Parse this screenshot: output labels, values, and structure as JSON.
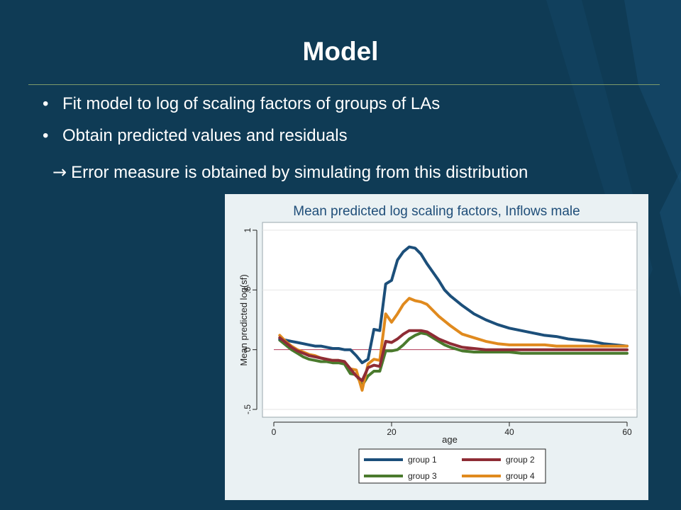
{
  "slide": {
    "title": "Model",
    "bullets": [
      "Fit model to log of scaling factors of groups of LAs",
      "Obtain predicted values and residuals"
    ],
    "bullet_symbol": "•",
    "arrow_symbol": "→",
    "arrow_text": "Error measure is obtained by simulating from this distribution"
  },
  "colors": {
    "background": "#0f3b55",
    "group_1": "#1c4f7a",
    "group_2": "#8e2c35",
    "group_3": "#4a7a2d",
    "group_4": "#e08a1e"
  },
  "chart_data": {
    "type": "line",
    "title": "Mean predicted log scaling factors, Inflows male",
    "xlabel": "age",
    "ylabel": "Mean predicted log(sf)",
    "xlim": [
      0,
      60
    ],
    "ylim": [
      -0.5,
      1
    ],
    "xticks": [
      0,
      20,
      40,
      60
    ],
    "yticks": [
      -0.5,
      0,
      0.5,
      1
    ],
    "ytick_labels": [
      "-.5",
      "0",
      ".5",
      "1"
    ],
    "xtick_labels": [
      "0",
      "20",
      "40",
      "60"
    ],
    "reference_line_y": 0,
    "grid": true,
    "legend_position": "bottom",
    "x": [
      1,
      2,
      3,
      4,
      5,
      6,
      7,
      8,
      9,
      10,
      11,
      12,
      13,
      14,
      15,
      16,
      17,
      18,
      19,
      20,
      21,
      22,
      23,
      24,
      25,
      26,
      27,
      28,
      29,
      30,
      32,
      34,
      36,
      38,
      40,
      42,
      44,
      46,
      48,
      50,
      52,
      54,
      56,
      58,
      60
    ],
    "series": [
      {
        "name": "group 1",
        "color": "#1c4f7a",
        "values": [
          0.09,
          0.08,
          0.07,
          0.06,
          0.05,
          0.04,
          0.03,
          0.03,
          0.02,
          0.01,
          0.01,
          0.0,
          0.0,
          -0.05,
          -0.11,
          -0.08,
          0.17,
          0.16,
          0.55,
          0.58,
          0.75,
          0.82,
          0.86,
          0.85,
          0.8,
          0.72,
          0.65,
          0.58,
          0.5,
          0.45,
          0.37,
          0.3,
          0.25,
          0.21,
          0.18,
          0.16,
          0.14,
          0.12,
          0.11,
          0.09,
          0.08,
          0.07,
          0.05,
          0.04,
          0.03
        ]
      },
      {
        "name": "group 2",
        "color": "#8e2c35",
        "values": [
          0.1,
          0.06,
          0.02,
          -0.01,
          -0.03,
          -0.05,
          -0.06,
          -0.07,
          -0.08,
          -0.09,
          -0.09,
          -0.1,
          -0.16,
          -0.22,
          -0.26,
          -0.15,
          -0.13,
          -0.14,
          0.07,
          0.06,
          0.09,
          0.13,
          0.16,
          0.16,
          0.16,
          0.15,
          0.12,
          0.09,
          0.07,
          0.05,
          0.02,
          0.01,
          0.0,
          0.0,
          0.0,
          0.0,
          0.0,
          0.0,
          0.0,
          0.0,
          0.0,
          0.0,
          0.0,
          0.0,
          0.0
        ]
      },
      {
        "name": "group 3",
        "color": "#4a7a2d",
        "values": [
          0.08,
          0.04,
          0.0,
          -0.03,
          -0.06,
          -0.08,
          -0.09,
          -0.1,
          -0.1,
          -0.11,
          -0.11,
          -0.12,
          -0.2,
          -0.21,
          -0.3,
          -0.22,
          -0.18,
          -0.18,
          -0.01,
          -0.01,
          0.0,
          0.04,
          0.09,
          0.12,
          0.14,
          0.13,
          0.1,
          0.07,
          0.04,
          0.02,
          -0.01,
          -0.02,
          -0.02,
          -0.02,
          -0.02,
          -0.03,
          -0.03,
          -0.03,
          -0.03,
          -0.03,
          -0.03,
          -0.03,
          -0.03,
          -0.03,
          -0.03
        ]
      },
      {
        "name": "group 4",
        "color": "#e08a1e",
        "values": [
          0.12,
          0.07,
          0.03,
          0.0,
          -0.02,
          -0.04,
          -0.05,
          -0.07,
          -0.08,
          -0.09,
          -0.09,
          -0.1,
          -0.16,
          -0.17,
          -0.34,
          -0.12,
          -0.08,
          -0.09,
          0.3,
          0.23,
          0.3,
          0.38,
          0.43,
          0.41,
          0.4,
          0.38,
          0.33,
          0.28,
          0.24,
          0.2,
          0.13,
          0.1,
          0.07,
          0.05,
          0.04,
          0.04,
          0.04,
          0.04,
          0.03,
          0.03,
          0.03,
          0.03,
          0.03,
          0.03,
          0.03
        ]
      }
    ]
  }
}
